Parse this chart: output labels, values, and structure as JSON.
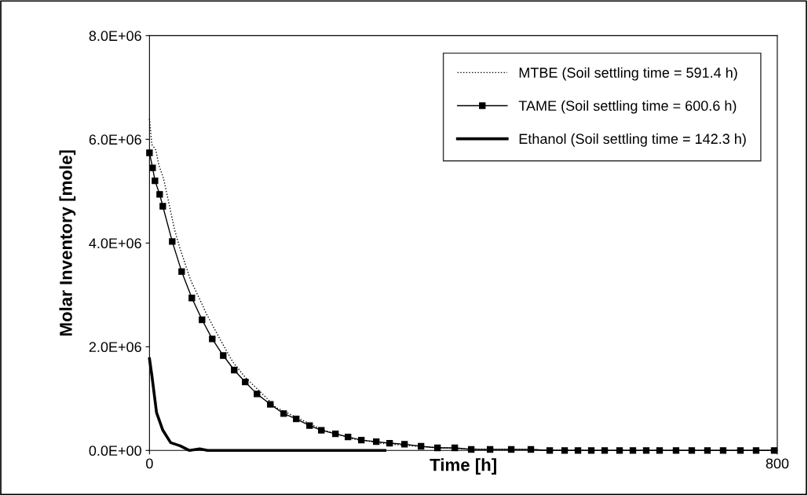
{
  "chart_data": {
    "type": "line",
    "xlabel": "Time [h]",
    "ylabel": "Molar Inventory [mole]",
    "xlim": [
      0,
      800
    ],
    "xticks": [
      0,
      800
    ],
    "ylim": [
      0,
      8000000
    ],
    "yticks": [
      {
        "value": 0,
        "label": "0.0E+00"
      },
      {
        "value": 2000000,
        "label": "2.0E+06"
      },
      {
        "value": 4000000,
        "label": "4.0E+06"
      },
      {
        "value": 6000000,
        "label": "6.0E+06"
      },
      {
        "value": 8000000,
        "label": "8.0E+06"
      }
    ],
    "legend": "top right",
    "grid": false,
    "series": [
      {
        "name": "MTBE (Soil settling time = 591.4 h)",
        "color": "#000000",
        "line_style": "dotted",
        "marker": "none",
        "x": [
          0,
          3,
          8,
          12,
          18,
          32,
          38,
          52,
          67,
          72,
          89,
          106,
          122,
          146,
          161,
          220,
          260,
          300,
          350,
          400,
          500,
          600,
          800
        ],
        "values": [
          6400000,
          5900000,
          5800000,
          5500000,
          5240000,
          4260000,
          3940000,
          3300000,
          2820000,
          2650000,
          2170000,
          1710000,
          1410000,
          1060000,
          830000,
          400000,
          220000,
          130000,
          70000,
          30000,
          10000,
          0,
          0
        ]
      },
      {
        "name": "TAME (Soil settling time = 600.6 h)",
        "color": "#000000",
        "line_style": "solid",
        "marker": "square",
        "x": [
          0,
          4,
          7,
          13,
          17,
          29,
          41,
          54,
          67,
          80,
          94,
          108,
          122,
          137,
          154,
          171,
          187,
          204,
          219,
          237,
          253,
          270,
          289,
          306,
          325,
          346,
          367,
          389,
          410,
          434,
          461,
          486,
          510,
          529,
          546,
          563,
          580,
          599,
          616,
          633,
          650,
          671,
          691,
          711,
          731,
          753,
          773,
          796
        ],
        "values": [
          5740000,
          5450000,
          5200000,
          4940000,
          4710000,
          4030000,
          3450000,
          2940000,
          2520000,
          2150000,
          1830000,
          1550000,
          1320000,
          1090000,
          890000,
          710000,
          610000,
          480000,
          390000,
          320000,
          260000,
          200000,
          170000,
          140000,
          120000,
          80000,
          50000,
          50000,
          20000,
          20000,
          20000,
          20000,
          0,
          0,
          0,
          0,
          0,
          0,
          0,
          0,
          0,
          0,
          0,
          0,
          0,
          0,
          0,
          0
        ]
      },
      {
        "name": "Ethanol (Soil settling time = 142.3 h)",
        "color": "#000000",
        "line_style": "solid",
        "marker": "none",
        "x": [
          0,
          3,
          9,
          17,
          27,
          39,
          51,
          64,
          74,
          300
        ],
        "values": [
          1770000,
          1450000,
          730000,
          390000,
          150000,
          90000,
          0,
          30000,
          0,
          0
        ]
      }
    ]
  }
}
